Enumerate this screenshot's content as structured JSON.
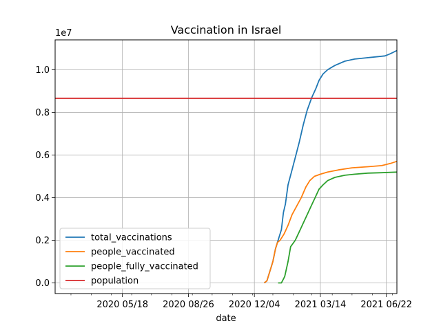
{
  "chart_data": {
    "type": "line",
    "title": "Vaccination in Israel",
    "xlabel": "date",
    "ylabel": "",
    "y_scale_label": "1e7",
    "x_range": [
      "2020-02-06",
      "2021-07-08"
    ],
    "ylim": [
      -0.05,
      1.14
    ],
    "grid": true,
    "legend_position": "lower-left",
    "x_ticks": [
      {
        "date": "2020-05-18",
        "label": "2020 05/18"
      },
      {
        "date": "2020-08-26",
        "label": "2020 08/26"
      },
      {
        "date": "2020-12-04",
        "label": "2020 12/04"
      },
      {
        "date": "2021-03-14",
        "label": "2021 03/14"
      },
      {
        "date": "2021-06-22",
        "label": "2021 06/22"
      }
    ],
    "y_ticks": [
      {
        "value": 0.0,
        "label": "0.0"
      },
      {
        "value": 0.2,
        "label": "0.2"
      },
      {
        "value": 0.4,
        "label": "0.4"
      },
      {
        "value": 0.6,
        "label": "0.6"
      },
      {
        "value": 0.8,
        "label": "0.8"
      },
      {
        "value": 1.0,
        "label": "1.0"
      }
    ],
    "series": [
      {
        "name": "total_vaccinations",
        "color": "#1f77b4",
        "points": [
          [
            "2020-12-19",
            0.0
          ],
          [
            "2020-12-23",
            0.01
          ],
          [
            "2020-12-28",
            0.06
          ],
          [
            "2021-01-01",
            0.1
          ],
          [
            "2021-01-05",
            0.16
          ],
          [
            "2021-01-09",
            0.2
          ],
          [
            "2021-01-14",
            0.25
          ],
          [
            "2021-01-17",
            0.33
          ],
          [
            "2021-01-20",
            0.37
          ],
          [
            "2021-01-24",
            0.46
          ],
          [
            "2021-01-30",
            0.53
          ],
          [
            "2021-02-05",
            0.6
          ],
          [
            "2021-02-10",
            0.66
          ],
          [
            "2021-02-16",
            0.74
          ],
          [
            "2021-02-22",
            0.81
          ],
          [
            "2021-03-01",
            0.87
          ],
          [
            "2021-03-07",
            0.91
          ],
          [
            "2021-03-12",
            0.95
          ],
          [
            "2021-03-18",
            0.98
          ],
          [
            "2021-03-25",
            1.0
          ],
          [
            "2021-04-05",
            1.02
          ],
          [
            "2021-04-20",
            1.04
          ],
          [
            "2021-05-05",
            1.05
          ],
          [
            "2021-05-20",
            1.055
          ],
          [
            "2021-06-05",
            1.06
          ],
          [
            "2021-06-20",
            1.065
          ],
          [
            "2021-06-28",
            1.075
          ],
          [
            "2021-07-08",
            1.09
          ]
        ]
      },
      {
        "name": "people_vaccinated",
        "color": "#ff7f0e",
        "points": [
          [
            "2020-12-19",
            0.0
          ],
          [
            "2020-12-23",
            0.01
          ],
          [
            "2020-12-28",
            0.06
          ],
          [
            "2021-01-01",
            0.1
          ],
          [
            "2021-01-05",
            0.16
          ],
          [
            "2021-01-08",
            0.19
          ],
          [
            "2021-01-12",
            0.2
          ],
          [
            "2021-01-18",
            0.23
          ],
          [
            "2021-01-24",
            0.27
          ],
          [
            "2021-01-30",
            0.32
          ],
          [
            "2021-02-06",
            0.36
          ],
          [
            "2021-02-13",
            0.4
          ],
          [
            "2021-02-20",
            0.45
          ],
          [
            "2021-02-26",
            0.48
          ],
          [
            "2021-03-05",
            0.5
          ],
          [
            "2021-03-14",
            0.51
          ],
          [
            "2021-03-25",
            0.52
          ],
          [
            "2021-04-10",
            0.53
          ],
          [
            "2021-05-01",
            0.54
          ],
          [
            "2021-05-25",
            0.545
          ],
          [
            "2021-06-15",
            0.55
          ],
          [
            "2021-06-28",
            0.56
          ],
          [
            "2021-07-08",
            0.57
          ]
        ]
      },
      {
        "name": "people_fully_vaccinated",
        "color": "#2ca02c",
        "points": [
          [
            "2021-01-09",
            0.0
          ],
          [
            "2021-01-14",
            0.0
          ],
          [
            "2021-01-19",
            0.03
          ],
          [
            "2021-01-24",
            0.1
          ],
          [
            "2021-01-28",
            0.17
          ],
          [
            "2021-02-04",
            0.2
          ],
          [
            "2021-02-10",
            0.24
          ],
          [
            "2021-02-16",
            0.28
          ],
          [
            "2021-02-22",
            0.32
          ],
          [
            "2021-02-28",
            0.36
          ],
          [
            "2021-03-06",
            0.4
          ],
          [
            "2021-03-12",
            0.44
          ],
          [
            "2021-03-18",
            0.46
          ],
          [
            "2021-03-25",
            0.48
          ],
          [
            "2021-04-05",
            0.495
          ],
          [
            "2021-04-20",
            0.505
          ],
          [
            "2021-05-05",
            0.51
          ],
          [
            "2021-05-25",
            0.515
          ],
          [
            "2021-06-15",
            0.517
          ],
          [
            "2021-07-08",
            0.52
          ]
        ]
      },
      {
        "name": "population",
        "color": "#d62728",
        "points": [
          [
            "2020-02-06",
            0.866
          ],
          [
            "2021-07-08",
            0.866
          ]
        ]
      }
    ]
  }
}
